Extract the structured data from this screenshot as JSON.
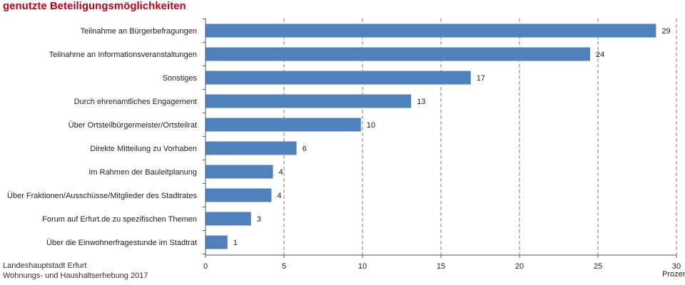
{
  "title": "genutzte Beteiligungsmöglichkeiten",
  "footer": {
    "line1": "Landeshauptstadt Erfurt",
    "line2": "Wohnungs- und Haushaltserhebung 2017"
  },
  "colors": {
    "bar": "#4f81bd",
    "title": "#c0001a",
    "grid": "#7f7f7f"
  },
  "chart_data": {
    "type": "bar",
    "orientation": "horizontal",
    "categories": [
      "Teilnahme an Bürgerbefragungen",
      "Teilnahme an Informationsveranstaltungen",
      "Sonstiges",
      "Durch ehrenamtliches Engagement",
      "Über Ortsteilbürgermeister/Ortsteilrat",
      "Direkte Mitteilung zu Vorhaben",
      "Im Rahmen der Bauleitplanung",
      "Über Fraktionen/Ausschüsse/Mitglieder des Stadtrates",
      "Forum auf Erfurt.de zu spezifischen Themen",
      "Über die Einwohnerfragestunde im Stadtrat"
    ],
    "values": [
      28.7,
      24.5,
      16.9,
      13.1,
      9.9,
      5.8,
      4.3,
      4.2,
      2.9,
      1.4
    ],
    "value_labels": [
      "29",
      "24",
      "17",
      "13",
      "10",
      "6",
      "4",
      "4",
      "3",
      "1"
    ],
    "xlabel": "Prozent",
    "xlim": [
      0,
      30
    ],
    "xticks": [
      0,
      5,
      10,
      15,
      20,
      25,
      30
    ],
    "grid": "vertical dashed",
    "legend": "none"
  }
}
